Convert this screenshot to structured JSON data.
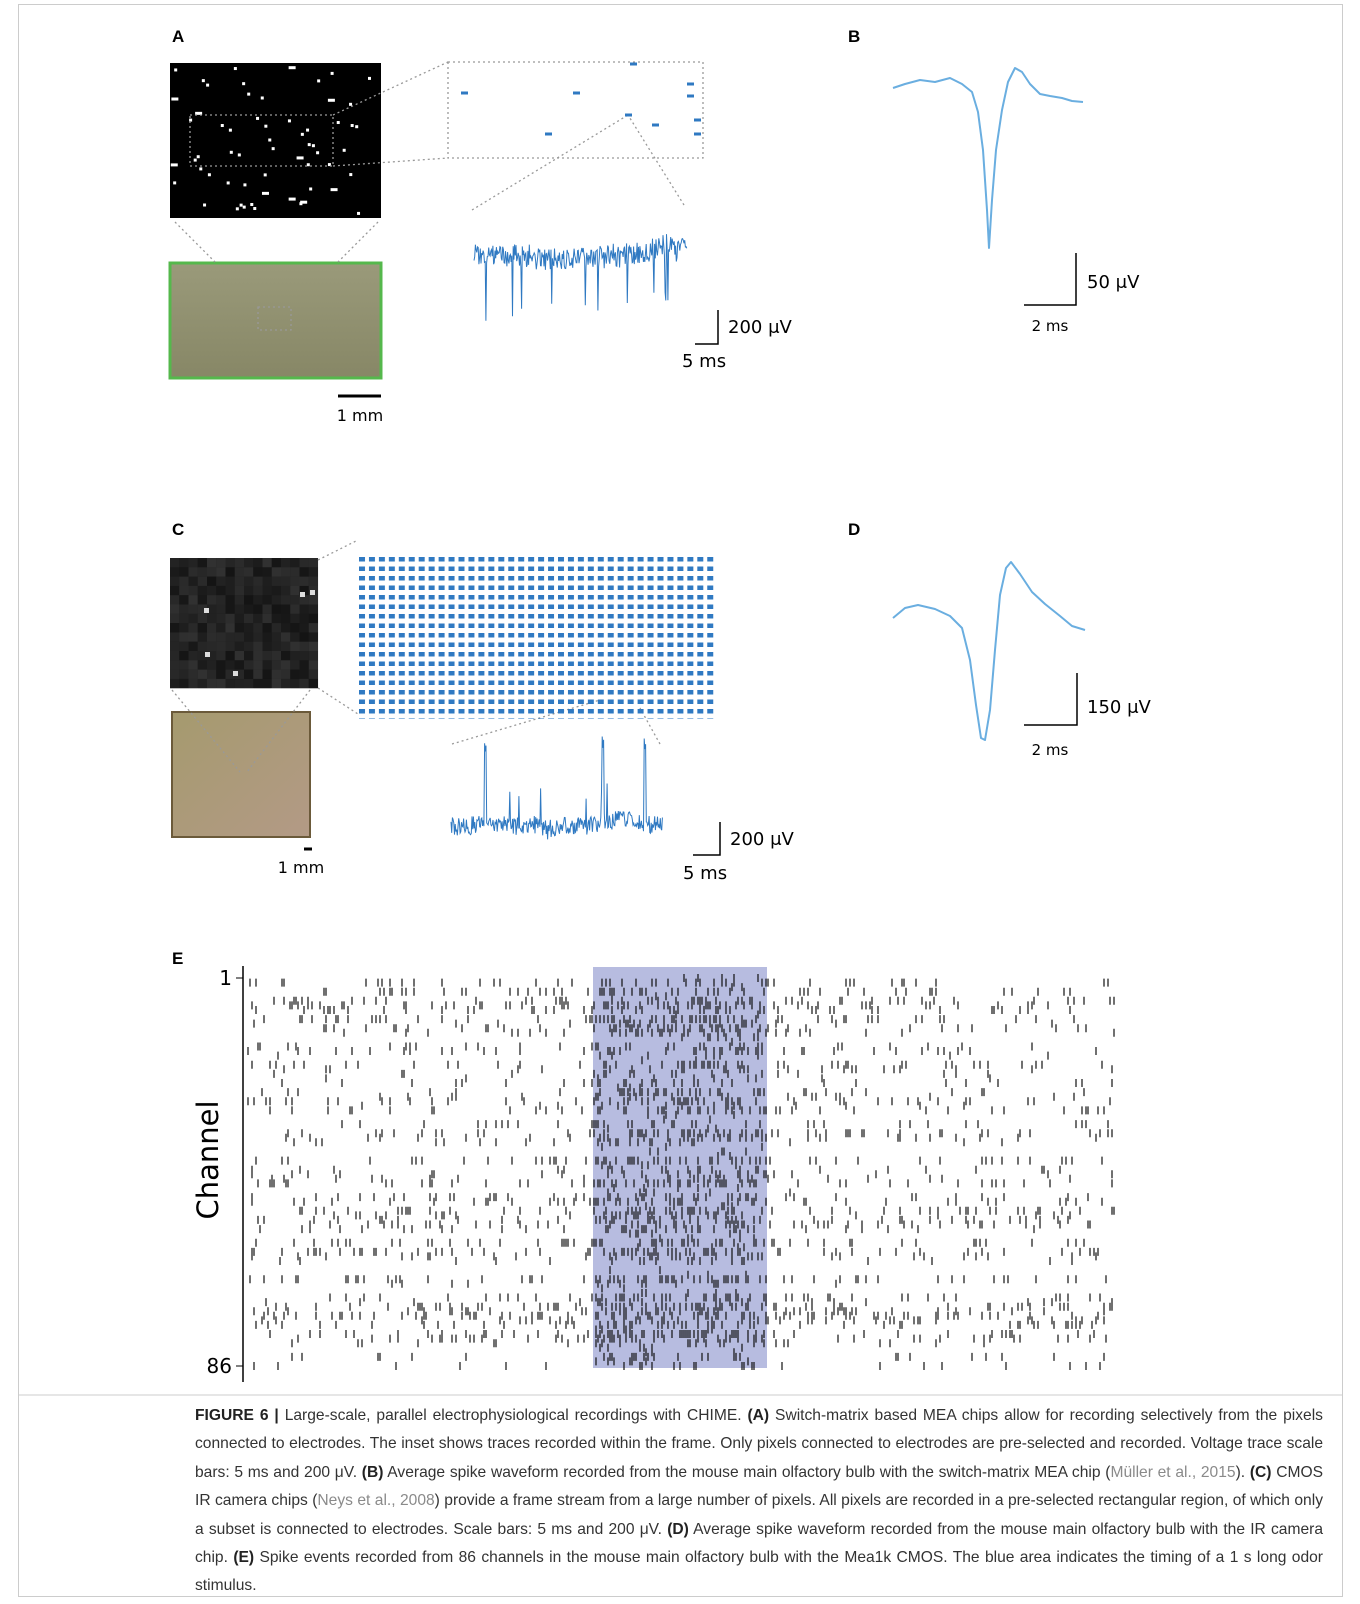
{
  "panels": {
    "A": {
      "label": "A",
      "scale_voltage": "200 μV",
      "scale_time": "5 ms",
      "scale_length": "1 mm"
    },
    "B": {
      "label": "B",
      "scale_voltage": "50 μV",
      "scale_time": "2 ms"
    },
    "C": {
      "label": "C",
      "scale_voltage": "200 μV",
      "scale_time": "5 ms",
      "scale_length": "1 mm"
    },
    "D": {
      "label": "D",
      "scale_voltage": "150 μV",
      "scale_time": "2 ms"
    },
    "E": {
      "label": "E",
      "axis_title": "Channel",
      "first_channel": 1,
      "last_channel": 86
    }
  },
  "caption": {
    "segments": [
      {
        "text": "FIGURE 6 |",
        "style": "bold"
      },
      {
        "text": " Large-scale, parallel electrophysiological recordings with CHIME. ",
        "style": "plain"
      },
      {
        "text": "(A)",
        "style": "bold"
      },
      {
        "text": " Switch-matrix based MEA chips allow for recording selectively from the pixels connected to electrodes. The inset shows traces recorded within the frame. Only pixels connected to electrodes are pre-selected and recorded. Voltage trace scale bars: 5 ms and 200 μV. ",
        "style": "plain"
      },
      {
        "text": "(B)",
        "style": "bold"
      },
      {
        "text": " Average spike waveform recorded from the mouse main olfactory bulb with the switch-matrix MEA chip (",
        "style": "plain"
      },
      {
        "text": "Müller et al., 2015",
        "style": "link"
      },
      {
        "text": "). ",
        "style": "plain"
      },
      {
        "text": "(C)",
        "style": "bold"
      },
      {
        "text": " CMOS IR camera chips (",
        "style": "plain"
      },
      {
        "text": "Neys et al., 2008",
        "style": "link"
      },
      {
        "text": ") provide a frame stream from a large number of pixels. All pixels are recorded in a pre-selected rectangular region, of which only a subset is connected to electrodes. Scale bars: 5 ms and 200 μV. ",
        "style": "plain"
      },
      {
        "text": "(D)",
        "style": "bold"
      },
      {
        "text": " Average spike waveform recorded from the mouse main olfactory bulb with the IR camera chip. ",
        "style": "plain"
      },
      {
        "text": "(E)",
        "style": "bold"
      },
      {
        "text": " Spike events recorded from 86 channels in the mouse main olfactory bulb with the Mea1k CMOS. The blue area indicates the timing of a 1 s long odor stimulus.",
        "style": "plain"
      }
    ]
  }
}
